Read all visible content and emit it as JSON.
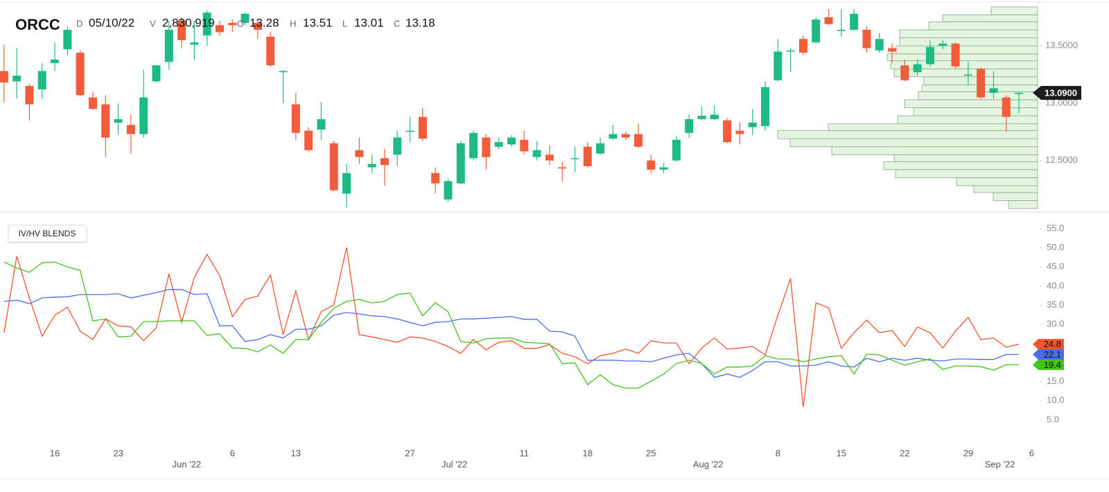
{
  "chart_data": [
    {
      "type": "candlestick",
      "header": {
        "symbol": "ORCC",
        "interval": "D",
        "date": "05/10/22",
        "fields": [
          {
            "label": "V",
            "value": "2,830,919"
          },
          {
            "label": "O",
            "value": "13.28"
          },
          {
            "label": "H",
            "value": "13.51"
          },
          {
            "label": "L",
            "value": "13.01"
          },
          {
            "label": "C",
            "value": "13.18"
          }
        ]
      },
      "up_color": "#1dba86",
      "down_color": "#f25c3a",
      "open": [
        13.28,
        13.19,
        13.15,
        13.12,
        13.35,
        13.47,
        13.44,
        13.05,
        12.99,
        12.83,
        12.81,
        12.73,
        13.19,
        13.36,
        13.72,
        13.51,
        13.59,
        13.68,
        13.7,
        13.7,
        13.7,
        13.58,
        13.27,
        12.99,
        12.76,
        12.77,
        12.65,
        12.21,
        12.59,
        12.44,
        12.52,
        12.55,
        12.75,
        12.88,
        12.39,
        12.16,
        12.3,
        12.52,
        12.7,
        12.62,
        12.64,
        12.68,
        12.53,
        12.55,
        12.44,
        12.52,
        12.62,
        12.56,
        12.69,
        12.73,
        12.73,
        12.5,
        12.42,
        12.5,
        12.74,
        12.86,
        12.86,
        12.85,
        12.76,
        12.79,
        12.8,
        13.2,
        13.45,
        13.56,
        13.53,
        13.75,
        13.63,
        13.64,
        13.64,
        13.46,
        13.48,
        13.33,
        13.27,
        13.34,
        13.5,
        13.52,
        13.24,
        13.3,
        13.09,
        13.05,
        13.08
      ],
      "high": [
        13.51,
        13.48,
        13.17,
        13.35,
        13.53,
        13.67,
        13.46,
        13.1,
        13.07,
        13.0,
        12.9,
        13.29,
        13.33,
        13.72,
        13.75,
        13.72,
        13.81,
        13.72,
        13.73,
        13.79,
        13.73,
        13.62,
        13.29,
        13.09,
        12.79,
        13.01,
        12.67,
        12.47,
        12.7,
        12.55,
        12.6,
        12.76,
        12.88,
        12.96,
        12.44,
        12.34,
        12.67,
        12.76,
        12.73,
        12.7,
        12.72,
        12.76,
        12.67,
        12.63,
        12.49,
        12.62,
        12.66,
        12.7,
        12.81,
        12.75,
        12.82,
        12.55,
        12.48,
        12.71,
        12.9,
        12.97,
        12.98,
        12.87,
        12.83,
        12.95,
        13.19,
        13.56,
        13.48,
        13.59,
        13.75,
        13.82,
        13.82,
        13.82,
        13.67,
        13.61,
        13.52,
        13.38,
        13.38,
        13.55,
        13.55,
        13.53,
        13.36,
        13.31,
        13.28,
        13.07,
        13.1
      ],
      "low": [
        13.01,
        13.04,
        12.85,
        13.04,
        13.28,
        13.42,
        13.06,
        12.94,
        12.53,
        12.73,
        12.56,
        12.7,
        13.18,
        13.29,
        13.48,
        13.38,
        13.5,
        13.59,
        13.62,
        13.68,
        13.56,
        13.32,
        13.0,
        12.68,
        12.58,
        12.68,
        12.23,
        12.09,
        12.47,
        12.39,
        12.28,
        12.45,
        12.66,
        12.67,
        12.21,
        12.14,
        12.29,
        12.5,
        12.42,
        12.6,
        12.62,
        12.55,
        12.5,
        12.46,
        12.32,
        12.4,
        12.44,
        12.55,
        12.68,
        12.68,
        12.61,
        12.39,
        12.39,
        12.49,
        12.7,
        12.85,
        12.85,
        12.65,
        12.64,
        12.72,
        12.76,
        13.19,
        13.27,
        13.42,
        13.52,
        13.68,
        13.58,
        13.63,
        13.44,
        13.44,
        13.35,
        13.19,
        13.24,
        13.32,
        13.47,
        13.3,
        13.16,
        13.04,
        13.04,
        12.75,
        12.91
      ],
      "close": [
        13.18,
        13.24,
        12.99,
        13.28,
        13.38,
        13.64,
        13.07,
        12.95,
        12.7,
        12.86,
        12.73,
        13.05,
        13.33,
        13.64,
        13.55,
        13.53,
        13.79,
        13.62,
        13.68,
        13.78,
        13.64,
        13.33,
        13.28,
        12.74,
        12.59,
        12.86,
        12.24,
        12.39,
        12.53,
        12.47,
        12.46,
        12.7,
        12.76,
        12.69,
        12.3,
        12.32,
        12.65,
        12.74,
        12.53,
        12.66,
        12.7,
        12.58,
        12.59,
        12.5,
        12.43,
        12.52,
        12.45,
        12.65,
        12.73,
        12.7,
        12.62,
        12.42,
        12.44,
        12.68,
        12.86,
        12.89,
        12.9,
        12.66,
        12.73,
        12.83,
        13.14,
        13.45,
        13.46,
        13.44,
        13.73,
        13.69,
        13.64,
        13.78,
        13.48,
        13.56,
        13.45,
        13.2,
        13.34,
        13.49,
        13.52,
        13.32,
        13.25,
        13.05,
        13.13,
        12.88,
        13.09
      ],
      "volume_profile": {
        "color": "#e4f5df",
        "bins": [
          12.08,
          12.15,
          12.22,
          12.28,
          12.35,
          12.42,
          12.49,
          12.55,
          12.62,
          12.69,
          12.76,
          12.82,
          12.89,
          12.96,
          13.03,
          13.1,
          13.16,
          13.23,
          13.3,
          13.37,
          13.43,
          13.5,
          13.57,
          13.64,
          13.71,
          13.77,
          13.84
        ],
        "values": [
          42,
          64,
          92,
          117,
          205,
          222,
          207,
          297,
          357,
          375,
          302,
          202,
          179,
          192,
          172,
          167,
          164,
          207,
          212,
          217,
          204,
          199,
          199,
          157,
          137,
          67
        ]
      },
      "last_price": 13.09,
      "last_price_label": "13.0900",
      "xlim": [
        -0.32,
        87.1
      ],
      "ylim": [
        12.05,
        13.9
      ],
      "yticks": [
        {
          "value": 12.5,
          "label": "12.5000"
        },
        {
          "value": 13.0,
          "label": "13.0000"
        },
        {
          "value": 13.5,
          "label": "13.5000"
        }
      ]
    },
    {
      "type": "line",
      "title": "IV/HV BLENDS",
      "series": [
        {
          "color": "#f2552c",
          "values": [
            27.8,
            47.8,
            36.9,
            26.9,
            32.4,
            34.5,
            28.2,
            26.0,
            31.4,
            29.6,
            29.3,
            25.7,
            29.1,
            43.2,
            30.5,
            42.3,
            48.3,
            42.7,
            32.0,
            36.5,
            37.4,
            42.9,
            27.3,
            38.7,
            26.0,
            33.3,
            35.1,
            50.1,
            27.3,
            26.7,
            26.0,
            25.3,
            26.7,
            26.4,
            25.5,
            24.2,
            22.4,
            26.0,
            23.3,
            25.3,
            25.7,
            23.7,
            23.7,
            24.7,
            22.4,
            21.5,
            19.7,
            21.8,
            22.4,
            23.5,
            22.4,
            25.7,
            25.1,
            25.1,
            19.7,
            23.8,
            26.4,
            23.5,
            23.8,
            24.2,
            22.0,
            32.4,
            42.0,
            8.3,
            35.6,
            34.3,
            23.7,
            27.8,
            31.1,
            27.8,
            28.4,
            24.2,
            29.3,
            27.8,
            23.8,
            28.2,
            31.8,
            26.0,
            26.4,
            24.0,
            24.8
          ]
        },
        {
          "color": "#4a6cf2",
          "values": [
            36.0,
            36.3,
            35.4,
            36.9,
            37.1,
            37.2,
            37.8,
            37.8,
            37.8,
            38.0,
            36.9,
            37.6,
            38.3,
            39.1,
            39.1,
            37.8,
            38.0,
            29.6,
            29.6,
            25.5,
            26.0,
            27.3,
            26.4,
            28.7,
            28.7,
            29.6,
            32.4,
            33.1,
            32.7,
            32.2,
            32.0,
            31.4,
            30.5,
            29.6,
            30.5,
            30.7,
            31.4,
            31.4,
            31.6,
            31.8,
            32.0,
            31.3,
            31.3,
            28.2,
            28.0,
            26.9,
            20.6,
            20.6,
            20.6,
            20.4,
            20.4,
            20.2,
            21.1,
            22.0,
            22.4,
            19.7,
            16.1,
            17.0,
            16.1,
            17.9,
            20.2,
            20.2,
            19.1,
            19.1,
            19.3,
            20.2,
            19.1,
            18.8,
            21.1,
            20.2,
            21.1,
            20.6,
            21.1,
            20.6,
            20.4,
            20.9,
            20.9,
            20.8,
            20.8,
            22.1,
            22.1
          ]
        },
        {
          "color": "#3fc41a",
          "values": [
            46.3,
            44.7,
            43.6,
            46.1,
            46.3,
            45.0,
            44.1,
            30.9,
            31.4,
            26.7,
            26.9,
            30.7,
            30.7,
            30.9,
            30.9,
            30.9,
            27.1,
            27.5,
            23.8,
            23.7,
            22.8,
            24.6,
            22.4,
            26.0,
            26.0,
            30.5,
            34.2,
            36.0,
            36.5,
            35.6,
            36.0,
            37.8,
            38.2,
            32.2,
            35.6,
            33.3,
            25.5,
            25.1,
            26.2,
            26.4,
            26.4,
            25.3,
            25.1,
            24.9,
            19.7,
            19.9,
            14.2,
            16.8,
            14.2,
            13.3,
            13.3,
            15.1,
            17.0,
            19.7,
            20.6,
            19.7,
            17.0,
            18.8,
            18.8,
            19.1,
            21.8,
            20.9,
            20.9,
            20.2,
            20.9,
            21.5,
            21.8,
            17.0,
            22.2,
            22.0,
            20.6,
            19.3,
            20.2,
            20.9,
            18.2,
            19.1,
            19.1,
            18.9,
            18.0,
            19.4,
            19.4
          ]
        }
      ],
      "xlim": [
        -0.32,
        87.1
      ],
      "ylim": [
        -1.2,
        57.2
      ],
      "yticks": [
        {
          "value": 5,
          "label": "5.0"
        },
        {
          "value": 10,
          "label": "10.0"
        },
        {
          "value": 15,
          "label": "15.0"
        },
        {
          "value": 20,
          "label": "20.0"
        },
        {
          "value": 25,
          "label": "25.0"
        },
        {
          "value": 30,
          "label": "30.0"
        },
        {
          "value": 35,
          "label": "35.0"
        },
        {
          "value": 40,
          "label": "40.0"
        },
        {
          "value": 45,
          "label": "45.0"
        },
        {
          "value": 50,
          "label": "50.0"
        },
        {
          "value": 55,
          "label": "55.0"
        }
      ],
      "xticks": [
        {
          "value": 4,
          "label": "16"
        },
        {
          "value": 9,
          "label": "23"
        },
        {
          "value": 18,
          "label": "6"
        },
        {
          "value": 23,
          "label": "13"
        },
        {
          "value": 32,
          "label": "27"
        },
        {
          "value": 41,
          "label": "11"
        },
        {
          "value": 46,
          "label": "18"
        },
        {
          "value": 51,
          "label": "25"
        },
        {
          "value": 61,
          "label": "8"
        },
        {
          "value": 66,
          "label": "15"
        },
        {
          "value": 71,
          "label": "22"
        },
        {
          "value": 76,
          "label": "29"
        },
        {
          "value": 81,
          "label": "6"
        }
      ],
      "month_ticks": [
        {
          "value": 14.4,
          "label": "Jun '22"
        },
        {
          "value": 35.5,
          "label": "Jul '22"
        },
        {
          "value": 55.5,
          "label": "Aug '22"
        },
        {
          "value": 78.5,
          "label": "Sep '22"
        }
      ]
    }
  ]
}
